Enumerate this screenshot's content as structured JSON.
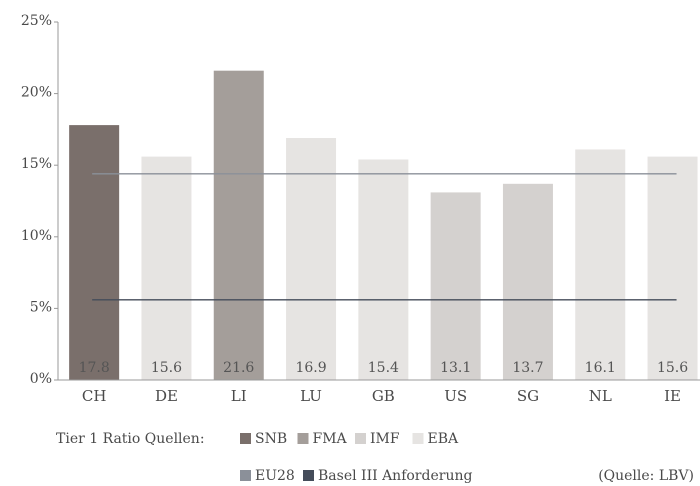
{
  "chart_data": {
    "type": "bar",
    "categories": [
      "CH",
      "DE",
      "LI",
      "LU",
      "GB",
      "US",
      "SG",
      "NL",
      "IE"
    ],
    "values": [
      17.8,
      15.6,
      21.6,
      16.9,
      15.4,
      13.1,
      13.7,
      16.1,
      15.6
    ],
    "bar_colors": [
      "#7a6f6b",
      "#e6e4e2",
      "#a49e9a",
      "#e6e4e2",
      "#e6e4e2",
      "#d4d1cf",
      "#d4d1cf",
      "#e6e4e2",
      "#e6e4e2"
    ],
    "ylim": [
      0,
      25
    ],
    "yticks": [
      {
        "value": 0,
        "label": "0%"
      },
      {
        "value": 5,
        "label": "5%"
      },
      {
        "value": 10,
        "label": "10%"
      },
      {
        "value": 15,
        "label": "15%"
      },
      {
        "value": 20,
        "label": "20%"
      },
      {
        "value": 25,
        "label": "25%"
      }
    ],
    "reference_lines": [
      {
        "name": "EU28",
        "value": 14.4,
        "color": "#8b9099"
      },
      {
        "name": "Basel III Anforderung",
        "value": 5.6,
        "color": "#444c5a"
      }
    ],
    "legend_title": "Tier 1 Ratio Quellen:",
    "legend": [
      {
        "name": "SNB",
        "color": "#7a6f6b"
      },
      {
        "name": "FMA",
        "color": "#a49e9a"
      },
      {
        "name": "IMF",
        "color": "#d4d1cf"
      },
      {
        "name": "EBA",
        "color": "#e6e4e2"
      }
    ],
    "source": "(Quelle: LBV)"
  }
}
